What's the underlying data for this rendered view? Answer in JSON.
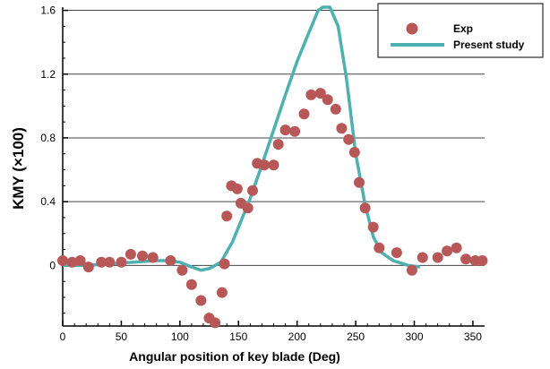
{
  "chart_data": {
    "type": "scatter",
    "xlabel": "Angular position of key blade (Deg)",
    "ylabel": "KMY (×100)",
    "xlim": [
      0,
      360
    ],
    "ylim": [
      -0.38,
      1.62
    ],
    "xticks": [
      0,
      50,
      100,
      150,
      200,
      250,
      300,
      350
    ],
    "xtick_labels": [
      "0",
      "50",
      "100",
      "150",
      "200",
      "250",
      "300",
      "350"
    ],
    "yticks": [
      0,
      0.4,
      0.8,
      1.2,
      1.6
    ],
    "ytick_labels": [
      "0",
      "0.4",
      "0.8",
      "1.2",
      "1.6"
    ],
    "grid": "horizontal",
    "legend_position": "top-right",
    "series": [
      {
        "name": "Exp",
        "kind": "markers",
        "color": "#b75757",
        "points": [
          [
            0,
            0.03
          ],
          [
            8,
            0.02
          ],
          [
            15,
            0.03
          ],
          [
            22,
            -0.01
          ],
          [
            33,
            0.02
          ],
          [
            40,
            0.02
          ],
          [
            50,
            0.02
          ],
          [
            58,
            0.07
          ],
          [
            68,
            0.06
          ],
          [
            77,
            0.05
          ],
          [
            92,
            0.03
          ],
          [
            102,
            -0.03
          ],
          [
            110,
            -0.12
          ],
          [
            118,
            -0.22
          ],
          [
            125,
            -0.33
          ],
          [
            130,
            -0.36
          ],
          [
            136,
            -0.17
          ],
          [
            138,
            0.01
          ],
          [
            140,
            0.31
          ],
          [
            144,
            0.5
          ],
          [
            149,
            0.48
          ],
          [
            152,
            0.39
          ],
          [
            158,
            0.36
          ],
          [
            162,
            0.47
          ],
          [
            166,
            0.64
          ],
          [
            172,
            0.63
          ],
          [
            180,
            0.63
          ],
          [
            184,
            0.76
          ],
          [
            190,
            0.85
          ],
          [
            198,
            0.84
          ],
          [
            206,
            0.95
          ],
          [
            212,
            1.07
          ],
          [
            220,
            1.08
          ],
          [
            226,
            1.04
          ],
          [
            233,
            0.98
          ],
          [
            238,
            0.86
          ],
          [
            244,
            0.79
          ],
          [
            249,
            0.71
          ],
          [
            253,
            0.52
          ],
          [
            258,
            0.36
          ],
          [
            265,
            0.24
          ],
          [
            270,
            0.11
          ],
          [
            285,
            0.08
          ],
          [
            298,
            -0.03
          ],
          [
            307,
            0.05
          ],
          [
            320,
            0.05
          ],
          [
            328,
            0.09
          ],
          [
            336,
            0.11
          ],
          [
            344,
            0.04
          ],
          [
            352,
            0.03
          ],
          [
            358,
            0.03
          ]
        ]
      },
      {
        "name": "Present study",
        "kind": "line",
        "color": "#4fb0b0",
        "points": [
          [
            0,
            0.0
          ],
          [
            20,
            0.0
          ],
          [
            40,
            0.01
          ],
          [
            60,
            0.02
          ],
          [
            80,
            0.03
          ],
          [
            92,
            0.03
          ],
          [
            100,
            0.02
          ],
          [
            110,
            -0.01
          ],
          [
            118,
            -0.03
          ],
          [
            125,
            -0.02
          ],
          [
            135,
            0.02
          ],
          [
            145,
            0.15
          ],
          [
            160,
            0.42
          ],
          [
            170,
            0.63
          ],
          [
            180,
            0.85
          ],
          [
            190,
            1.07
          ],
          [
            200,
            1.28
          ],
          [
            210,
            1.46
          ],
          [
            218,
            1.6
          ],
          [
            222,
            1.62
          ],
          [
            228,
            1.62
          ],
          [
            235,
            1.5
          ],
          [
            242,
            1.18
          ],
          [
            250,
            0.7
          ],
          [
            258,
            0.38
          ],
          [
            265,
            0.18
          ],
          [
            272,
            0.08
          ],
          [
            282,
            0.03
          ],
          [
            295,
            0.0
          ],
          [
            305,
            -0.01
          ]
        ]
      }
    ]
  }
}
